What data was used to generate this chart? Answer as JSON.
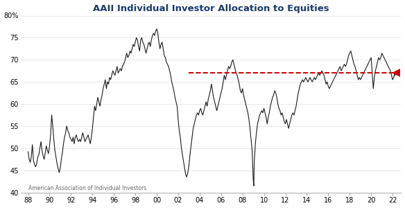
{
  "title": "AAII Individual Investor Allocation to Equities",
  "title_color": "#1a3a6b",
  "source": "American Association of Individual Investors",
  "ylim": [
    40,
    80
  ],
  "yticks": [
    40,
    45,
    50,
    55,
    60,
    65,
    70,
    75,
    80
  ],
  "ytick_labels": [
    "40",
    "45",
    "50",
    "55",
    "60",
    "65",
    "70",
    "75",
    "80%"
  ],
  "xtick_labels": [
    "88",
    "90",
    "92",
    "94",
    "96",
    "98",
    "00",
    "02",
    "04",
    "06",
    "08",
    "10",
    "12",
    "14",
    "16",
    "18",
    "20",
    "22"
  ],
  "dashed_line_y": 67.0,
  "dashed_line_color": "#cc0000",
  "arrow_color": "#cc0000",
  "line_color": "#1a1a1a",
  "background_color": "#ffffff",
  "grid_color": "#dddddd",
  "series": [
    [
      1988.0,
      49.2
    ],
    [
      1988.1,
      47.5
    ],
    [
      1988.2,
      46.8
    ],
    [
      1988.3,
      48.1
    ],
    [
      1988.4,
      50.8
    ],
    [
      1988.5,
      47.2
    ],
    [
      1988.6,
      46.3
    ],
    [
      1988.7,
      45.8
    ],
    [
      1988.8,
      46.5
    ],
    [
      1988.9,
      48.0
    ],
    [
      1989.0,
      48.5
    ],
    [
      1989.1,
      50.0
    ],
    [
      1989.2,
      51.5
    ],
    [
      1989.3,
      49.5
    ],
    [
      1989.4,
      48.2
    ],
    [
      1989.5,
      47.5
    ],
    [
      1989.6,
      49.0
    ],
    [
      1989.7,
      50.5
    ],
    [
      1989.8,
      49.5
    ],
    [
      1989.9,
      48.8
    ],
    [
      1990.0,
      50.5
    ],
    [
      1990.1,
      53.0
    ],
    [
      1990.2,
      57.5
    ],
    [
      1990.3,
      55.0
    ],
    [
      1990.4,
      52.0
    ],
    [
      1990.5,
      49.5
    ],
    [
      1990.6,
      48.0
    ],
    [
      1990.7,
      46.5
    ],
    [
      1990.8,
      45.5
    ],
    [
      1990.9,
      44.5
    ],
    [
      1991.0,
      45.5
    ],
    [
      1991.1,
      47.5
    ],
    [
      1991.2,
      49.0
    ],
    [
      1991.3,
      51.0
    ],
    [
      1991.4,
      52.5
    ],
    [
      1991.5,
      53.5
    ],
    [
      1991.6,
      55.0
    ],
    [
      1991.7,
      54.0
    ],
    [
      1991.8,
      53.5
    ],
    [
      1991.9,
      52.5
    ],
    [
      1992.0,
      52.0
    ],
    [
      1992.1,
      51.5
    ],
    [
      1992.2,
      52.5
    ],
    [
      1992.3,
      51.0
    ],
    [
      1992.4,
      52.5
    ],
    [
      1992.5,
      53.0
    ],
    [
      1992.6,
      52.0
    ],
    [
      1992.7,
      51.5
    ],
    [
      1992.8,
      52.0
    ],
    [
      1992.9,
      51.5
    ],
    [
      1993.0,
      52.5
    ],
    [
      1993.1,
      53.5
    ],
    [
      1993.2,
      52.5
    ],
    [
      1993.3,
      51.5
    ],
    [
      1993.4,
      52.0
    ],
    [
      1993.5,
      52.5
    ],
    [
      1993.6,
      53.0
    ],
    [
      1993.7,
      52.0
    ],
    [
      1993.8,
      51.0
    ],
    [
      1993.9,
      52.5
    ],
    [
      1994.0,
      54.5
    ],
    [
      1994.1,
      57.0
    ],
    [
      1994.2,
      59.5
    ],
    [
      1994.3,
      58.5
    ],
    [
      1994.4,
      60.0
    ],
    [
      1994.5,
      61.5
    ],
    [
      1994.6,
      60.5
    ],
    [
      1994.7,
      59.5
    ],
    [
      1994.8,
      61.0
    ],
    [
      1994.9,
      62.0
    ],
    [
      1995.0,
      63.5
    ],
    [
      1995.1,
      64.5
    ],
    [
      1995.2,
      65.5
    ],
    [
      1995.3,
      63.5
    ],
    [
      1995.4,
      65.0
    ],
    [
      1995.5,
      64.5
    ],
    [
      1995.6,
      66.0
    ],
    [
      1995.7,
      65.5
    ],
    [
      1995.8,
      66.5
    ],
    [
      1995.9,
      67.5
    ],
    [
      1996.0,
      67.0
    ],
    [
      1996.1,
      66.5
    ],
    [
      1996.2,
      67.5
    ],
    [
      1996.3,
      68.5
    ],
    [
      1996.4,
      67.0
    ],
    [
      1996.5,
      67.5
    ],
    [
      1996.6,
      68.0
    ],
    [
      1996.7,
      67.5
    ],
    [
      1996.8,
      68.5
    ],
    [
      1996.9,
      69.0
    ],
    [
      1997.0,
      69.5
    ],
    [
      1997.1,
      70.5
    ],
    [
      1997.2,
      71.5
    ],
    [
      1997.3,
      70.5
    ],
    [
      1997.4,
      71.0
    ],
    [
      1997.5,
      72.0
    ],
    [
      1997.6,
      71.5
    ],
    [
      1997.7,
      72.5
    ],
    [
      1997.8,
      73.5
    ],
    [
      1997.9,
      73.0
    ],
    [
      1998.0,
      74.0
    ],
    [
      1998.1,
      75.0
    ],
    [
      1998.2,
      74.5
    ],
    [
      1998.3,
      73.0
    ],
    [
      1998.4,
      72.0
    ],
    [
      1998.5,
      74.5
    ],
    [
      1998.6,
      75.0
    ],
    [
      1998.7,
      74.0
    ],
    [
      1998.8,
      73.5
    ],
    [
      1998.9,
      72.5
    ],
    [
      1999.0,
      71.5
    ],
    [
      1999.1,
      72.5
    ],
    [
      1999.2,
      73.5
    ],
    [
      1999.3,
      74.0
    ],
    [
      1999.4,
      73.0
    ],
    [
      1999.5,
      74.5
    ],
    [
      1999.6,
      75.5
    ],
    [
      1999.7,
      76.0
    ],
    [
      1999.8,
      75.5
    ],
    [
      1999.9,
      76.5
    ],
    [
      2000.0,
      77.0
    ],
    [
      2000.1,
      76.0
    ],
    [
      2000.2,
      74.0
    ],
    [
      2000.3,
      72.5
    ],
    [
      2000.4,
      73.5
    ],
    [
      2000.5,
      74.0
    ],
    [
      2000.6,
      72.5
    ],
    [
      2000.7,
      71.0
    ],
    [
      2000.8,
      70.5
    ],
    [
      2000.9,
      69.5
    ],
    [
      2001.0,
      69.0
    ],
    [
      2001.1,
      68.5
    ],
    [
      2001.2,
      67.5
    ],
    [
      2001.3,
      66.5
    ],
    [
      2001.4,
      65.0
    ],
    [
      2001.5,
      64.0
    ],
    [
      2001.6,
      63.0
    ],
    [
      2001.7,
      61.5
    ],
    [
      2001.8,
      60.5
    ],
    [
      2001.9,
      59.5
    ],
    [
      2002.0,
      56.5
    ],
    [
      2002.1,
      54.0
    ],
    [
      2002.2,
      52.5
    ],
    [
      2002.3,
      50.0
    ],
    [
      2002.4,
      48.5
    ],
    [
      2002.5,
      47.0
    ],
    [
      2002.6,
      45.5
    ],
    [
      2002.7,
      44.0
    ],
    [
      2002.8,
      43.5
    ],
    [
      2002.9,
      44.5
    ],
    [
      2003.0,
      46.0
    ],
    [
      2003.1,
      48.5
    ],
    [
      2003.2,
      50.5
    ],
    [
      2003.3,
      52.5
    ],
    [
      2003.4,
      54.5
    ],
    [
      2003.5,
      55.5
    ],
    [
      2003.6,
      56.5
    ],
    [
      2003.7,
      57.5
    ],
    [
      2003.8,
      58.0
    ],
    [
      2003.9,
      57.5
    ],
    [
      2004.0,
      58.5
    ],
    [
      2004.1,
      59.0
    ],
    [
      2004.2,
      58.0
    ],
    [
      2004.3,
      57.5
    ],
    [
      2004.4,
      58.5
    ],
    [
      2004.5,
      59.5
    ],
    [
      2004.6,
      60.5
    ],
    [
      2004.7,
      59.5
    ],
    [
      2004.8,
      61.0
    ],
    [
      2004.9,
      62.0
    ],
    [
      2005.0,
      63.0
    ],
    [
      2005.1,
      64.5
    ],
    [
      2005.2,
      63.0
    ],
    [
      2005.3,
      61.5
    ],
    [
      2005.4,
      60.5
    ],
    [
      2005.5,
      59.5
    ],
    [
      2005.6,
      58.5
    ],
    [
      2005.7,
      59.5
    ],
    [
      2005.8,
      60.5
    ],
    [
      2005.9,
      61.5
    ],
    [
      2006.0,
      62.5
    ],
    [
      2006.1,
      63.5
    ],
    [
      2006.2,
      65.0
    ],
    [
      2006.3,
      66.5
    ],
    [
      2006.4,
      65.5
    ],
    [
      2006.5,
      66.5
    ],
    [
      2006.6,
      67.5
    ],
    [
      2006.7,
      68.5
    ],
    [
      2006.8,
      68.0
    ],
    [
      2006.9,
      68.5
    ],
    [
      2007.0,
      69.5
    ],
    [
      2007.1,
      70.0
    ],
    [
      2007.2,
      69.0
    ],
    [
      2007.3,
      68.0
    ],
    [
      2007.4,
      67.0
    ],
    [
      2007.5,
      66.5
    ],
    [
      2007.6,
      65.5
    ],
    [
      2007.7,
      64.5
    ],
    [
      2007.8,
      63.0
    ],
    [
      2007.9,
      62.5
    ],
    [
      2008.0,
      63.5
    ],
    [
      2008.1,
      62.0
    ],
    [
      2008.2,
      61.0
    ],
    [
      2008.3,
      60.0
    ],
    [
      2008.4,
      59.0
    ],
    [
      2008.5,
      58.0
    ],
    [
      2008.6,
      56.5
    ],
    [
      2008.7,
      54.5
    ],
    [
      2008.8,
      52.0
    ],
    [
      2008.9,
      49.5
    ],
    [
      2009.0,
      43.0
    ],
    [
      2009.05,
      41.5
    ],
    [
      2009.1,
      47.0
    ],
    [
      2009.2,
      51.0
    ],
    [
      2009.3,
      53.5
    ],
    [
      2009.4,
      55.5
    ],
    [
      2009.5,
      56.5
    ],
    [
      2009.6,
      57.5
    ],
    [
      2009.7,
      58.0
    ],
    [
      2009.8,
      58.5
    ],
    [
      2009.9,
      58.0
    ],
    [
      2010.0,
      59.0
    ],
    [
      2010.1,
      58.0
    ],
    [
      2010.2,
      57.0
    ],
    [
      2010.3,
      55.5
    ],
    [
      2010.4,
      57.0
    ],
    [
      2010.5,
      58.0
    ],
    [
      2010.6,
      59.5
    ],
    [
      2010.7,
      60.5
    ],
    [
      2010.8,
      61.5
    ],
    [
      2010.9,
      62.0
    ],
    [
      2011.0,
      63.0
    ],
    [
      2011.1,
      62.5
    ],
    [
      2011.2,
      61.5
    ],
    [
      2011.3,
      60.0
    ],
    [
      2011.4,
      59.0
    ],
    [
      2011.5,
      58.5
    ],
    [
      2011.6,
      57.5
    ],
    [
      2011.7,
      58.0
    ],
    [
      2011.8,
      57.0
    ],
    [
      2011.9,
      56.0
    ],
    [
      2012.0,
      55.5
    ],
    [
      2012.1,
      56.5
    ],
    [
      2012.2,
      55.5
    ],
    [
      2012.3,
      54.5
    ],
    [
      2012.4,
      55.5
    ],
    [
      2012.5,
      56.5
    ],
    [
      2012.6,
      57.5
    ],
    [
      2012.7,
      58.0
    ],
    [
      2012.8,
      57.5
    ],
    [
      2012.9,
      58.5
    ],
    [
      2013.0,
      59.5
    ],
    [
      2013.1,
      61.0
    ],
    [
      2013.2,
      62.5
    ],
    [
      2013.3,
      63.5
    ],
    [
      2013.4,
      64.5
    ],
    [
      2013.5,
      65.0
    ],
    [
      2013.6,
      65.5
    ],
    [
      2013.7,
      65.0
    ],
    [
      2013.8,
      65.5
    ],
    [
      2013.9,
      66.0
    ],
    [
      2014.0,
      65.5
    ],
    [
      2014.1,
      65.0
    ],
    [
      2014.2,
      65.5
    ],
    [
      2014.3,
      66.0
    ],
    [
      2014.4,
      65.5
    ],
    [
      2014.5,
      65.0
    ],
    [
      2014.6,
      65.5
    ],
    [
      2014.7,
      66.0
    ],
    [
      2014.8,
      65.5
    ],
    [
      2014.9,
      66.0
    ],
    [
      2015.0,
      66.5
    ],
    [
      2015.1,
      67.0
    ],
    [
      2015.2,
      66.5
    ],
    [
      2015.3,
      67.0
    ],
    [
      2015.4,
      67.5
    ],
    [
      2015.5,
      67.0
    ],
    [
      2015.6,
      66.5
    ],
    [
      2015.7,
      65.5
    ],
    [
      2015.8,
      64.5
    ],
    [
      2015.9,
      65.0
    ],
    [
      2016.0,
      64.0
    ],
    [
      2016.1,
      63.5
    ],
    [
      2016.2,
      64.0
    ],
    [
      2016.3,
      64.5
    ],
    [
      2016.4,
      65.0
    ],
    [
      2016.5,
      65.5
    ],
    [
      2016.6,
      66.0
    ],
    [
      2016.7,
      66.5
    ],
    [
      2016.8,
      67.0
    ],
    [
      2016.9,
      67.5
    ],
    [
      2017.0,
      68.0
    ],
    [
      2017.1,
      68.5
    ],
    [
      2017.2,
      67.5
    ],
    [
      2017.3,
      68.0
    ],
    [
      2017.4,
      68.5
    ],
    [
      2017.5,
      69.0
    ],
    [
      2017.6,
      68.5
    ],
    [
      2017.7,
      69.0
    ],
    [
      2017.8,
      70.0
    ],
    [
      2017.9,
      71.0
    ],
    [
      2018.0,
      71.5
    ],
    [
      2018.1,
      72.0
    ],
    [
      2018.2,
      71.0
    ],
    [
      2018.3,
      70.0
    ],
    [
      2018.4,
      69.0
    ],
    [
      2018.5,
      68.5
    ],
    [
      2018.6,
      67.5
    ],
    [
      2018.7,
      66.5
    ],
    [
      2018.8,
      65.5
    ],
    [
      2018.9,
      66.0
    ],
    [
      2019.0,
      65.5
    ],
    [
      2019.1,
      66.0
    ],
    [
      2019.2,
      66.5
    ],
    [
      2019.3,
      67.0
    ],
    [
      2019.4,
      67.5
    ],
    [
      2019.5,
      68.0
    ],
    [
      2019.6,
      68.5
    ],
    [
      2019.7,
      69.0
    ],
    [
      2019.8,
      69.5
    ],
    [
      2019.9,
      70.0
    ],
    [
      2020.0,
      70.5
    ],
    [
      2020.1,
      67.0
    ],
    [
      2020.2,
      63.5
    ],
    [
      2020.3,
      66.0
    ],
    [
      2020.4,
      67.5
    ],
    [
      2020.5,
      68.5
    ],
    [
      2020.6,
      69.5
    ],
    [
      2020.7,
      70.5
    ],
    [
      2020.8,
      70.0
    ],
    [
      2020.9,
      70.5
    ],
    [
      2021.0,
      71.5
    ],
    [
      2021.1,
      71.0
    ],
    [
      2021.2,
      70.5
    ],
    [
      2021.3,
      70.0
    ],
    [
      2021.4,
      69.5
    ],
    [
      2021.5,
      69.0
    ],
    [
      2021.6,
      68.5
    ],
    [
      2021.7,
      68.0
    ],
    [
      2021.8,
      67.5
    ],
    [
      2021.9,
      66.5
    ],
    [
      2022.0,
      65.5
    ],
    [
      2022.1,
      66.0
    ],
    [
      2022.2,
      67.0
    ],
    [
      2022.25,
      66.5
    ]
  ]
}
